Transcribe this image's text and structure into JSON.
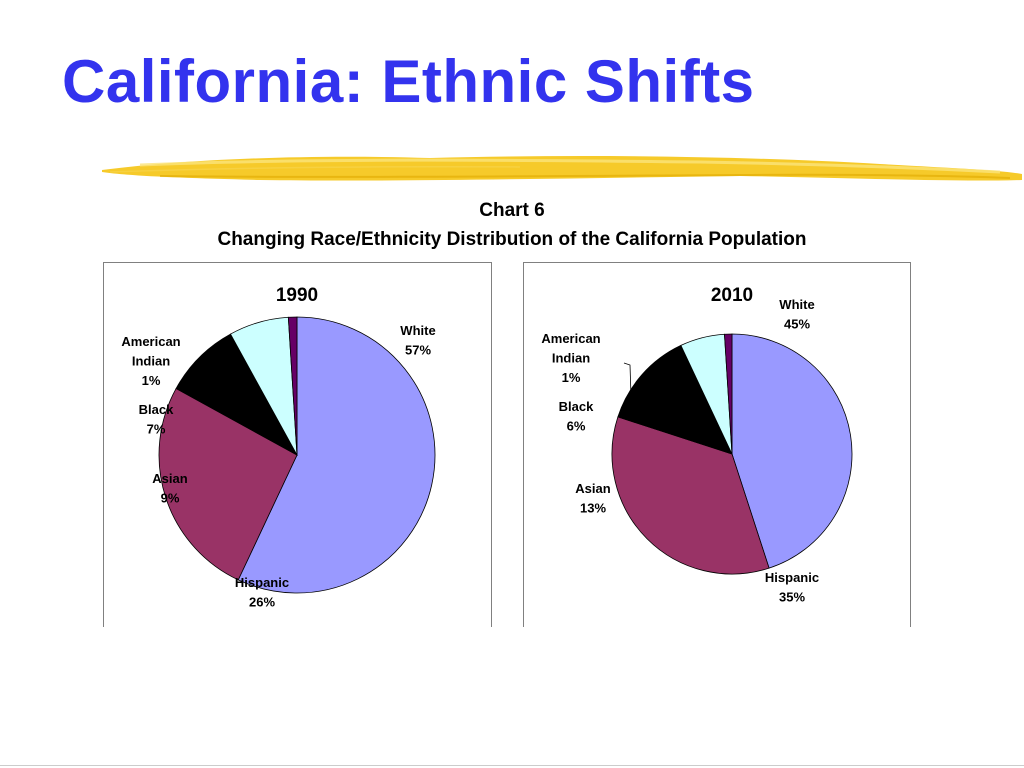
{
  "slide": {
    "title": "California: Ethnic Shifts",
    "chart_number": "Chart 6",
    "chart_caption": "Changing Race/Ethnicity Distribution of the California Population"
  },
  "colors": {
    "title": "#3333ee",
    "brush": "#f5c518",
    "White": "#9999ff",
    "Hispanic": "#993366",
    "Asian": "#000000",
    "Black": "#ccffff",
    "American Indian": "#660066"
  },
  "chart_data": [
    {
      "type": "pie",
      "title": "1990",
      "slices": [
        {
          "name": "White",
          "label": [
            "White",
            "57%"
          ],
          "value": 57
        },
        {
          "name": "Hispanic",
          "label": [
            "Hispanic",
            "26%"
          ],
          "value": 26
        },
        {
          "name": "Asian",
          "label": [
            "Asian",
            "9%"
          ],
          "value": 9
        },
        {
          "name": "Black",
          "label": [
            "Black",
            "7%"
          ],
          "value": 7
        },
        {
          "name": "American Indian",
          "label": [
            "American",
            "Indian",
            "1%"
          ],
          "value": 1
        }
      ]
    },
    {
      "type": "pie",
      "title": "2010",
      "slices": [
        {
          "name": "White",
          "label": [
            "White",
            "45%"
          ],
          "value": 45
        },
        {
          "name": "Hispanic",
          "label": [
            "Hispanic",
            "35%"
          ],
          "value": 35
        },
        {
          "name": "Asian",
          "label": [
            "Asian",
            "13%"
          ],
          "value": 13
        },
        {
          "name": "Black",
          "label": [
            "Black",
            "6%"
          ],
          "value": 6
        },
        {
          "name": "American Indian",
          "label": [
            "American",
            "Indian",
            "1%"
          ],
          "value": 1
        }
      ]
    }
  ]
}
